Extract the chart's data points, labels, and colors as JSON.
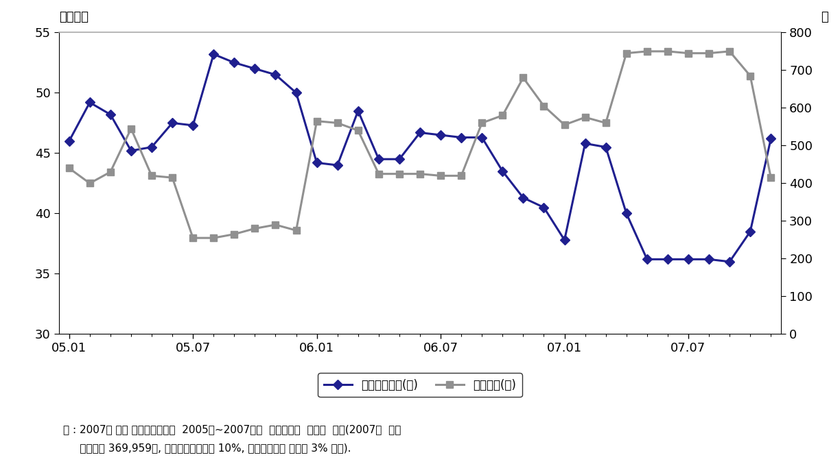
{
  "title_left": "재고일수",
  "title_right": "톤",
  "xlim_min": -0.5,
  "xlim_max": 34.5,
  "ylim_left": [
    30,
    55
  ],
  "ylim_right": [
    0,
    800
  ],
  "yticks_left": [
    30,
    35,
    40,
    45,
    50,
    55
  ],
  "yticks_right": [
    0,
    100,
    200,
    300,
    400,
    500,
    600,
    700,
    800
  ],
  "xtick_labels": [
    "05.01",
    "05.07",
    "06.01",
    "06.07",
    "07.01",
    "07.07"
  ],
  "xtick_positions": [
    0,
    6,
    12,
    18,
    24,
    30
  ],
  "legend_labels": [
    "닭표재고수준(좌)",
    "방출물량(우)"
  ],
  "note_line1": "주 : 2007년 연간 국내수요예측이  2005년~2007년중  연간수요와  같다고  가정(2007년  국내",
  "note_line2": "     수요량은 369,959톤, 목표시장점유율을 10%, 시장점유율의 편차를 3% 가정).",
  "line1_color": "#1F1F8F",
  "line2_color": "#909090",
  "line1_x": [
    0,
    1,
    2,
    3,
    4,
    5,
    6,
    7,
    8,
    9,
    10,
    11,
    12,
    13,
    14,
    15,
    16,
    17,
    18,
    19,
    20,
    21,
    22,
    23,
    24,
    25,
    26,
    27,
    28,
    29,
    30,
    31,
    32,
    33,
    34
  ],
  "line1_y": [
    46.0,
    49.2,
    48.2,
    45.2,
    45.5,
    47.5,
    47.3,
    53.2,
    52.5,
    52.0,
    51.5,
    50.0,
    44.2,
    44.0,
    48.5,
    44.5,
    44.5,
    46.7,
    46.5,
    46.3,
    46.3,
    43.5,
    41.3,
    40.5,
    37.8,
    45.8,
    45.5,
    40.0,
    36.2,
    36.2,
    36.2,
    36.2,
    36.0,
    38.5,
    46.2
  ],
  "line2_x": [
    0,
    1,
    2,
    3,
    4,
    5,
    6,
    7,
    8,
    9,
    10,
    11,
    12,
    13,
    14,
    15,
    16,
    17,
    18,
    19,
    20,
    21,
    22,
    23,
    24,
    25,
    26,
    27,
    28,
    29,
    30,
    31,
    32,
    33,
    34
  ],
  "line2_y": [
    440,
    400,
    430,
    545,
    420,
    415,
    255,
    255,
    265,
    280,
    290,
    275,
    565,
    560,
    540,
    425,
    425,
    425,
    420,
    420,
    560,
    580,
    680,
    605,
    555,
    575,
    560,
    745,
    750,
    750,
    745,
    745,
    750,
    685,
    415
  ],
  "background_color": "#ffffff"
}
